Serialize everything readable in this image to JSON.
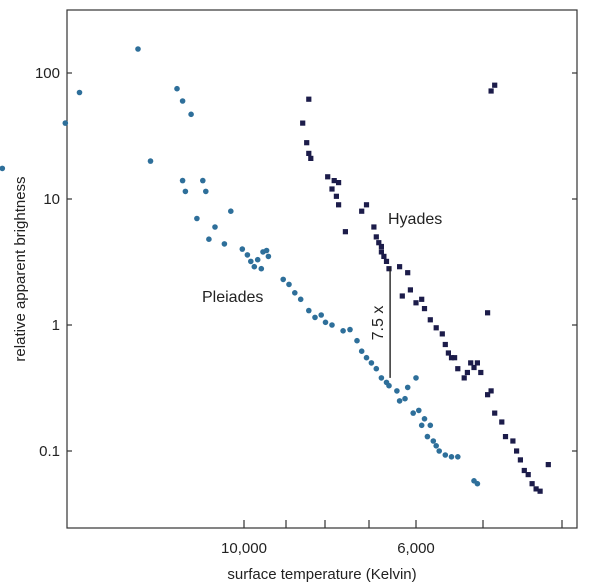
{
  "chart_data": {
    "type": "scatter",
    "title": "",
    "xlabel": "surface temperature (Kelvin)",
    "ylabel": "relative apparent brightness",
    "x_axis": {
      "reversed": true,
      "log": true,
      "tick_labels": [
        "10,000",
        "6,000"
      ],
      "tick_values": [
        10000,
        6000
      ]
    },
    "y_axis": {
      "log": true,
      "ylim": [
        0.03,
        300
      ],
      "tick_labels": [
        "0.1",
        "1",
        "10",
        "100"
      ],
      "tick_values": [
        0.1,
        1,
        10,
        100
      ]
    },
    "grid": false,
    "colors": {
      "Pleiades": "#2e6f9a",
      "Hyades": "#1c1c4a"
    },
    "series": [
      {
        "name": "Pleiades",
        "marker": "circle",
        "points": [
          [
            20500,
            17.5
          ],
          [
            17000,
            40
          ],
          [
            16300,
            70
          ],
          [
            13700,
            155
          ],
          [
            13200,
            20
          ],
          [
            12200,
            75
          ],
          [
            12000,
            60
          ],
          [
            11700,
            47
          ],
          [
            12000,
            14
          ],
          [
            11900,
            11.5
          ],
          [
            11300,
            14
          ],
          [
            11200,
            11.5
          ],
          [
            11500,
            7
          ],
          [
            10900,
            6
          ],
          [
            10400,
            8
          ],
          [
            11100,
            4.8
          ],
          [
            10600,
            4.4
          ],
          [
            10050,
            4
          ],
          [
            9900,
            3.6
          ],
          [
            9800,
            3.2
          ],
          [
            9700,
            2.9
          ],
          [
            9600,
            3.3
          ],
          [
            9450,
            3.8
          ],
          [
            9350,
            3.9
          ],
          [
            9300,
            3.5
          ],
          [
            9500,
            2.8
          ],
          [
            8900,
            2.3
          ],
          [
            8750,
            2.1
          ],
          [
            8600,
            1.8
          ],
          [
            8450,
            1.6
          ],
          [
            8250,
            1.3
          ],
          [
            8100,
            1.15
          ],
          [
            7950,
            1.2
          ],
          [
            7850,
            1.05
          ],
          [
            7700,
            1.0
          ],
          [
            7450,
            0.9
          ],
          [
            7300,
            0.92
          ],
          [
            7150,
            0.75
          ],
          [
            7050,
            0.62
          ],
          [
            6950,
            0.55
          ],
          [
            6850,
            0.5
          ],
          [
            6750,
            0.45
          ],
          [
            6650,
            0.38
          ],
          [
            6550,
            0.35
          ],
          [
            6500,
            0.33
          ],
          [
            6350,
            0.3
          ],
          [
            6300,
            0.25
          ],
          [
            6200,
            0.26
          ],
          [
            6150,
            0.32
          ],
          [
            6000,
            0.38
          ],
          [
            6050,
            0.2
          ],
          [
            5950,
            0.21
          ],
          [
            5850,
            0.18
          ],
          [
            5750,
            0.16
          ],
          [
            5900,
            0.16
          ],
          [
            5800,
            0.13
          ],
          [
            5700,
            0.12
          ],
          [
            5650,
            0.11
          ],
          [
            5600,
            0.1
          ],
          [
            5500,
            0.093
          ],
          [
            5400,
            0.09
          ],
          [
            5300,
            0.09
          ],
          [
            5050,
            0.058
          ],
          [
            5000,
            0.055
          ]
        ]
      },
      {
        "name": "Hyades",
        "marker": "square",
        "points": [
          [
            8400,
            40
          ],
          [
            8250,
            62
          ],
          [
            8300,
            28
          ],
          [
            8250,
            23
          ],
          [
            8200,
            21
          ],
          [
            7800,
            15
          ],
          [
            7650,
            14
          ],
          [
            7550,
            13.5
          ],
          [
            7700,
            12
          ],
          [
            7600,
            10.5
          ],
          [
            7550,
            9
          ],
          [
            7400,
            5.5
          ],
          [
            7050,
            8
          ],
          [
            6950,
            9
          ],
          [
            6800,
            6
          ],
          [
            6750,
            5
          ],
          [
            6700,
            4.5
          ],
          [
            6650,
            4.2
          ],
          [
            6650,
            3.8
          ],
          [
            6600,
            3.5
          ],
          [
            6550,
            3.2
          ],
          [
            6500,
            2.8
          ],
          [
            6300,
            2.9
          ],
          [
            6150,
            2.6
          ],
          [
            6250,
            1.7
          ],
          [
            6100,
            1.9
          ],
          [
            6000,
            1.5
          ],
          [
            5900,
            1.6
          ],
          [
            5850,
            1.35
          ],
          [
            5750,
            1.1
          ],
          [
            5650,
            0.95
          ],
          [
            5550,
            0.85
          ],
          [
            5500,
            0.7
          ],
          [
            5450,
            0.6
          ],
          [
            5350,
            0.55
          ],
          [
            5300,
            0.45
          ],
          [
            5200,
            0.38
          ],
          [
            5150,
            0.42
          ],
          [
            5100,
            0.5
          ],
          [
            5050,
            0.46
          ],
          [
            5000,
            0.5
          ],
          [
            4950,
            0.42
          ],
          [
            4850,
            0.28
          ],
          [
            4800,
            0.3
          ],
          [
            4750,
            0.2
          ],
          [
            4650,
            0.17
          ],
          [
            4600,
            0.13
          ],
          [
            4500,
            0.12
          ],
          [
            4450,
            0.1
          ],
          [
            4400,
            0.085
          ],
          [
            4350,
            0.07
          ],
          [
            4300,
            0.065
          ],
          [
            4250,
            0.055
          ],
          [
            4200,
            0.05
          ],
          [
            4150,
            0.048
          ],
          [
            4050,
            0.078
          ],
          [
            4750,
            80
          ],
          [
            4800,
            72
          ],
          [
            4850,
            1.25
          ],
          [
            5400,
            0.55
          ]
        ]
      }
    ],
    "annotations": [
      {
        "text": "Hyades",
        "x": 6150,
        "y": 10
      },
      {
        "text": "Pleiades",
        "x": 10050,
        "y": 2.1
      },
      {
        "text": "7.5 x",
        "x": 6450,
        "y": 0.85
      }
    ],
    "gap_bar": {
      "x": 6480,
      "y_top": 2.9,
      "y_bottom": 0.38
    }
  }
}
